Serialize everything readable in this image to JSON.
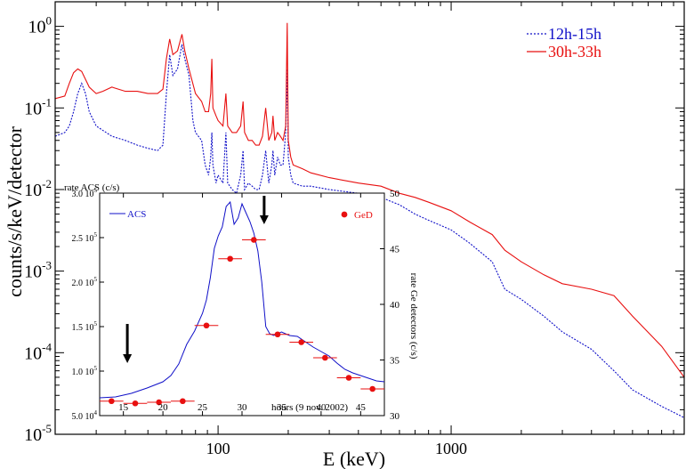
{
  "chart_data": [
    {
      "type": "line",
      "xlabel": "E (keV)",
      "ylabel": "counts/s/keV/detector",
      "xscale": "log",
      "yscale": "log",
      "xlim": [
        20,
        10000
      ],
      "ylim": [
        1e-05,
        2
      ],
      "x_ticks": [
        {
          "value": 100,
          "label": "100"
        },
        {
          "value": 1000,
          "label": "1000"
        }
      ],
      "y_ticks": [
        {
          "value": 1e-05,
          "base": "10",
          "exp": "-5"
        },
        {
          "value": 0.0001,
          "base": "10",
          "exp": "-4"
        },
        {
          "value": 0.001,
          "base": "10",
          "exp": "-3"
        },
        {
          "value": 0.01,
          "base": "10",
          "exp": "-2"
        },
        {
          "value": 0.1,
          "base": "10",
          "exp": "-1"
        },
        {
          "value": 1,
          "base": "10",
          "exp": "0"
        }
      ],
      "legend_position": "top-right",
      "series": [
        {
          "name": "12h-15h",
          "color": "#1010c8",
          "style": "dotted",
          "points": [
            [
              20,
              0.045
            ],
            [
              22,
              0.05
            ],
            [
              23,
              0.06
            ],
            [
              24,
              0.09
            ],
            [
              25,
              0.15
            ],
            [
              26,
              0.2
            ],
            [
              27,
              0.15
            ],
            [
              28,
              0.09
            ],
            [
              30,
              0.06
            ],
            [
              35,
              0.045
            ],
            [
              40,
              0.04
            ],
            [
              45,
              0.035
            ],
            [
              50,
              0.032
            ],
            [
              55,
              0.03
            ],
            [
              58,
              0.035
            ],
            [
              60,
              0.15
            ],
            [
              62,
              0.45
            ],
            [
              64,
              0.25
            ],
            [
              67,
              0.3
            ],
            [
              70,
              0.6
            ],
            [
              72,
              0.4
            ],
            [
              75,
              0.25
            ],
            [
              78,
              0.07
            ],
            [
              80,
              0.05
            ],
            [
              85,
              0.04
            ],
            [
              88,
              0.02
            ],
            [
              91,
              0.015
            ],
            [
              93,
              0.025
            ],
            [
              94,
              0.05
            ],
            [
              95,
              0.02
            ],
            [
              98,
              0.012
            ],
            [
              100,
              0.015
            ],
            [
              105,
              0.012
            ],
            [
              108,
              0.05
            ],
            [
              110,
              0.012
            ],
            [
              115,
              0.01
            ],
            [
              120,
              0.009
            ],
            [
              125,
              0.015
            ],
            [
              128,
              0.03
            ],
            [
              130,
              0.01
            ],
            [
              135,
              0.012
            ],
            [
              140,
              0.011
            ],
            [
              145,
              0.01
            ],
            [
              150,
              0.01
            ],
            [
              155,
              0.015
            ],
            [
              160,
              0.03
            ],
            [
              165,
              0.012
            ],
            [
              170,
              0.02
            ],
            [
              172,
              0.03
            ],
            [
              175,
              0.015
            ],
            [
              180,
              0.025
            ],
            [
              185,
              0.02
            ],
            [
              190,
              0.02
            ],
            [
              195,
              0.05
            ],
            [
              198,
              0.3
            ],
            [
              200,
              0.025
            ],
            [
              205,
              0.015
            ],
            [
              210,
              0.012
            ],
            [
              230,
              0.011
            ],
            [
              250,
              0.011
            ],
            [
              300,
              0.01
            ],
            [
              400,
              0.009
            ],
            [
              500,
              0.008
            ],
            [
              600,
              0.0065
            ],
            [
              700,
              0.005
            ],
            [
              800,
              0.0042
            ],
            [
              1000,
              0.0032
            ],
            [
              1200,
              0.0022
            ],
            [
              1500,
              0.0013
            ],
            [
              1700,
              0.0006
            ],
            [
              2000,
              0.00045
            ],
            [
              2500,
              0.00028
            ],
            [
              3000,
              0.00018
            ],
            [
              4000,
              0.00011
            ],
            [
              5000,
              6e-05
            ],
            [
              6000,
              3.5e-05
            ],
            [
              8000,
              2.2e-05
            ],
            [
              10000,
              1.6e-05
            ]
          ]
        },
        {
          "name": "30h-33h",
          "color": "#e81010",
          "style": "solid",
          "points": [
            [
              20,
              0.13
            ],
            [
              22,
              0.14
            ],
            [
              23,
              0.2
            ],
            [
              24,
              0.27
            ],
            [
              25,
              0.3
            ],
            [
              26,
              0.28
            ],
            [
              28,
              0.18
            ],
            [
              30,
              0.15
            ],
            [
              32,
              0.16
            ],
            [
              35,
              0.18
            ],
            [
              40,
              0.16
            ],
            [
              45,
              0.16
            ],
            [
              50,
              0.15
            ],
            [
              55,
              0.15
            ],
            [
              58,
              0.17
            ],
            [
              60,
              0.4
            ],
            [
              62,
              0.7
            ],
            [
              64,
              0.45
            ],
            [
              67,
              0.5
            ],
            [
              70,
              0.8
            ],
            [
              72,
              0.5
            ],
            [
              75,
              0.3
            ],
            [
              80,
              0.15
            ],
            [
              85,
              0.12
            ],
            [
              88,
              0.09
            ],
            [
              91,
              0.09
            ],
            [
              93,
              0.15
            ],
            [
              94,
              0.4
            ],
            [
              95,
              0.1
            ],
            [
              98,
              0.08
            ],
            [
              100,
              0.07
            ],
            [
              105,
              0.06
            ],
            [
              108,
              0.15
            ],
            [
              110,
              0.06
            ],
            [
              115,
              0.05
            ],
            [
              120,
              0.05
            ],
            [
              125,
              0.06
            ],
            [
              128,
              0.12
            ],
            [
              130,
              0.05
            ],
            [
              135,
              0.04
            ],
            [
              140,
              0.04
            ],
            [
              145,
              0.035
            ],
            [
              150,
              0.035
            ],
            [
              155,
              0.045
            ],
            [
              160,
              0.1
            ],
            [
              165,
              0.04
            ],
            [
              170,
              0.05
            ],
            [
              172,
              0.08
            ],
            [
              175,
              0.04
            ],
            [
              180,
              0.05
            ],
            [
              185,
              0.045
            ],
            [
              190,
              0.04
            ],
            [
              195,
              0.06
            ],
            [
              198,
              1.1
            ],
            [
              200,
              0.04
            ],
            [
              205,
              0.025
            ],
            [
              210,
              0.02
            ],
            [
              230,
              0.018
            ],
            [
              250,
              0.016
            ],
            [
              300,
              0.014
            ],
            [
              400,
              0.012
            ],
            [
              500,
              0.011
            ],
            [
              600,
              0.009
            ],
            [
              700,
              0.008
            ],
            [
              800,
              0.007
            ],
            [
              1000,
              0.0055
            ],
            [
              1200,
              0.004
            ],
            [
              1500,
              0.0028
            ],
            [
              1700,
              0.0018
            ],
            [
              2000,
              0.0013
            ],
            [
              2500,
              0.0009
            ],
            [
              3000,
              0.0007
            ],
            [
              4000,
              0.0006
            ],
            [
              5000,
              0.0005
            ],
            [
              6000,
              0.00028
            ],
            [
              8000,
              0.00012
            ],
            [
              10000,
              5e-05
            ]
          ]
        }
      ]
    },
    {
      "type": "line",
      "inset": true,
      "xlabel": "hours (9 nov. 2002)",
      "ylabel_left": "rate ACS (c/s)",
      "ylabel_right": "rate Ge detectors (c/s)",
      "xlim": [
        12,
        48
      ],
      "ylim_left": [
        50000,
        300000
      ],
      "ylim_right": [
        30,
        50
      ],
      "x_ticks": [
        15,
        20,
        25,
        30,
        35,
        40,
        45
      ],
      "y_ticks_left": [
        {
          "value": 50000,
          "label": "5.0 10",
          "exp": "4"
        },
        {
          "value": 100000,
          "label": "1.0 10",
          "exp": "5"
        },
        {
          "value": 150000,
          "label": "1.5 10",
          "exp": "5"
        },
        {
          "value": 200000,
          "label": "2.0 10",
          "exp": "5"
        },
        {
          "value": 250000,
          "label": "2.5 10",
          "exp": "5"
        },
        {
          "value": 300000,
          "label": "3.0 10",
          "exp": "5"
        }
      ],
      "y_ticks_right": [
        30,
        35,
        40,
        45,
        50
      ],
      "arrows_at_hours": [
        15.5,
        32.8
      ],
      "series": [
        {
          "name": "ACS",
          "color": "#1010c8",
          "axis": "left",
          "points": [
            [
              12,
              70000
            ],
            [
              14,
              71000
            ],
            [
              16,
              75000
            ],
            [
              18,
              81000
            ],
            [
              20,
              88000
            ],
            [
              21,
              95000
            ],
            [
              22,
              108000
            ],
            [
              23,
              130000
            ],
            [
              24,
              145000
            ],
            [
              25,
              165000
            ],
            [
              25.5,
              180000
            ],
            [
              26,
              205000
            ],
            [
              26.5,
              238000
            ],
            [
              27,
              252000
            ],
            [
              27.5,
              262000
            ],
            [
              28,
              285000
            ],
            [
              28.5,
              290000
            ],
            [
              29,
              265000
            ],
            [
              29.5,
              272000
            ],
            [
              30,
              288000
            ],
            [
              30.5,
              278000
            ],
            [
              31,
              268000
            ],
            [
              31.5,
              255000
            ],
            [
              32,
              235000
            ],
            [
              32.5,
              200000
            ],
            [
              33,
              150000
            ],
            [
              33.5,
              142000
            ],
            [
              34,
              140000
            ],
            [
              35,
              144000
            ],
            [
              36,
              140000
            ],
            [
              37,
              139000
            ],
            [
              38,
              133000
            ],
            [
              39,
              127000
            ],
            [
              40,
              122000
            ],
            [
              41,
              117000
            ],
            [
              42,
              109000
            ],
            [
              43,
              102000
            ],
            [
              44,
              98000
            ],
            [
              45,
              95000
            ],
            [
              46,
              92000
            ],
            [
              47,
              89000
            ],
            [
              48,
              88000
            ]
          ]
        },
        {
          "name": "GeD",
          "color": "#e81010",
          "axis": "right",
          "points": [
            {
              "x": 13.5,
              "xerr": 1.5,
              "y": 31.3
            },
            {
              "x": 16.5,
              "xerr": 1.5,
              "y": 31.1
            },
            {
              "x": 19.5,
              "xerr": 1.5,
              "y": 31.2
            },
            {
              "x": 22.5,
              "xerr": 1.5,
              "y": 31.3
            },
            {
              "x": 25.5,
              "xerr": 1.5,
              "y": 38.1
            },
            {
              "x": 28.5,
              "xerr": 1.5,
              "y": 44.1
            },
            {
              "x": 31.5,
              "xerr": 1.5,
              "y": 45.8
            },
            {
              "x": 34.5,
              "xerr": 1.5,
              "y": 37.3
            },
            {
              "x": 37.5,
              "xerr": 1.5,
              "y": 36.6
            },
            {
              "x": 40.5,
              "xerr": 1.5,
              "y": 35.2
            },
            {
              "x": 43.5,
              "xerr": 1.5,
              "y": 33.4
            },
            {
              "x": 46.5,
              "xerr": 1.5,
              "y": 32.4
            }
          ]
        }
      ]
    }
  ]
}
